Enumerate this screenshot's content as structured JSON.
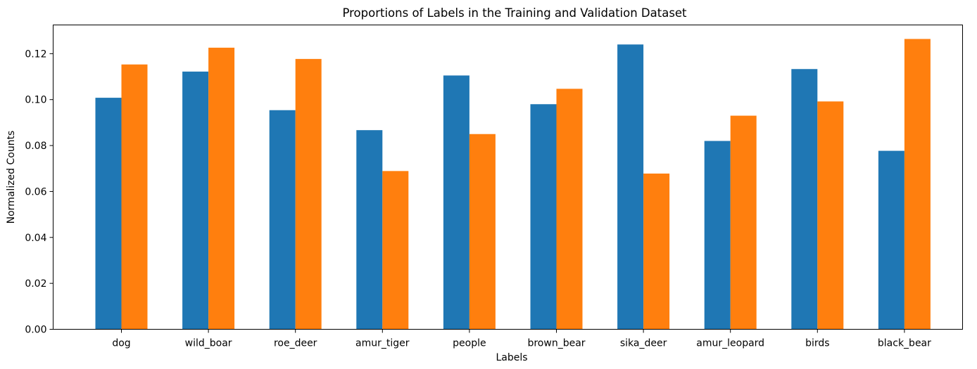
{
  "chart_data": {
    "type": "bar",
    "title": "Proportions of Labels in the Training and Validation Dataset",
    "xlabel": "Labels",
    "ylabel": "Normalized Counts",
    "categories": [
      "dog",
      "wild_boar",
      "roe_deer",
      "amur_tiger",
      "people",
      "brown_bear",
      "sika_deer",
      "amur_leopard",
      "birds",
      "black_bear"
    ],
    "series": [
      {
        "color": "#1f77b4",
        "values": [
          0.1008,
          0.1122,
          0.0954,
          0.0867,
          0.1105,
          0.098,
          0.124,
          0.082,
          0.1133,
          0.0777
        ]
      },
      {
        "color": "#ff7f0e",
        "values": [
          0.1153,
          0.1226,
          0.1177,
          0.0689,
          0.085,
          0.1047,
          0.0678,
          0.093,
          0.0992,
          0.1264
        ]
      }
    ],
    "ylim": [
      0,
      0.1325
    ],
    "yticks": [
      0.0,
      0.02,
      0.04,
      0.06,
      0.08,
      0.1,
      0.12
    ],
    "ytick_labels": [
      "0.00",
      "0.02",
      "0.04",
      "0.06",
      "0.08",
      "0.10",
      "0.12"
    ],
    "grid": false,
    "legend": "none"
  }
}
